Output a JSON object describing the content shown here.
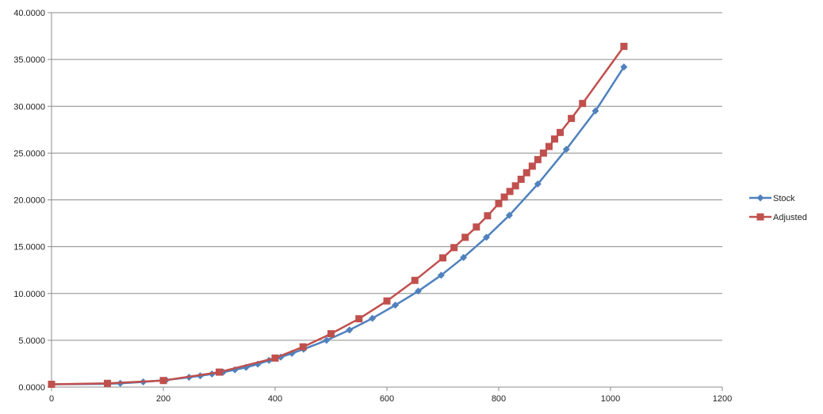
{
  "chart_data": {
    "type": "line",
    "title": "",
    "xlabel": "",
    "ylabel": "",
    "xlim": [
      0,
      1200
    ],
    "ylim": [
      0,
      40
    ],
    "x_ticks": [
      0,
      200,
      400,
      600,
      800,
      1000,
      1200
    ],
    "x_tick_labels": [
      "0",
      "200",
      "400",
      "600",
      "800",
      "1000",
      "1200"
    ],
    "y_ticks": [
      0,
      5,
      10,
      15,
      20,
      25,
      30,
      35,
      40
    ],
    "y_tick_labels": [
      "0.0000",
      "5.0000",
      "10.0000",
      "15.0000",
      "20.0000",
      "25.0000",
      "30.0000",
      "35.0000",
      "40.0000"
    ],
    "grid": {
      "horizontal": true,
      "vertical": false
    },
    "legend_position": "right",
    "series": [
      {
        "name": "Stock",
        "color": "#4F81BD",
        "marker": "diamond",
        "points": [
          [
            0,
            0.3
          ],
          [
            100,
            0.35
          ],
          [
            123,
            0.4
          ],
          [
            164,
            0.55
          ],
          [
            205,
            0.75
          ],
          [
            246,
            1.05
          ],
          [
            266,
            1.2
          ],
          [
            287,
            1.4
          ],
          [
            307,
            1.6
          ],
          [
            328,
            1.85
          ],
          [
            348,
            2.1
          ],
          [
            369,
            2.45
          ],
          [
            389,
            2.85
          ],
          [
            410,
            3.2
          ],
          [
            430,
            3.6
          ],
          [
            451,
            4.05
          ],
          [
            492,
            5.0
          ],
          [
            533,
            6.1
          ],
          [
            574,
            7.35
          ],
          [
            615,
            8.75
          ],
          [
            656,
            10.25
          ],
          [
            697,
            11.95
          ],
          [
            737,
            13.85
          ],
          [
            778,
            16.0
          ],
          [
            819,
            18.35
          ],
          [
            870,
            21.7
          ],
          [
            921,
            25.4
          ],
          [
            973,
            29.5
          ],
          [
            1024,
            34.2
          ]
        ]
      },
      {
        "name": "Adjusted",
        "color": "#C0504D",
        "marker": "square",
        "points": [
          [
            0,
            0.3
          ],
          [
            100,
            0.4
          ],
          [
            200,
            0.7
          ],
          [
            300,
            1.6
          ],
          [
            400,
            3.1
          ],
          [
            450,
            4.3
          ],
          [
            500,
            5.7
          ],
          [
            550,
            7.3
          ],
          [
            600,
            9.2
          ],
          [
            650,
            11.4
          ],
          [
            700,
            13.8
          ],
          [
            720,
            14.9
          ],
          [
            740,
            16.0
          ],
          [
            760,
            17.1
          ],
          [
            780,
            18.3
          ],
          [
            800,
            19.6
          ],
          [
            810,
            20.3
          ],
          [
            820,
            20.9
          ],
          [
            830,
            21.5
          ],
          [
            840,
            22.2
          ],
          [
            850,
            22.9
          ],
          [
            860,
            23.6
          ],
          [
            870,
            24.3
          ],
          [
            880,
            25.0
          ],
          [
            890,
            25.7
          ],
          [
            900,
            26.5
          ],
          [
            910,
            27.2
          ],
          [
            930,
            28.7
          ],
          [
            950,
            30.3
          ],
          [
            1024,
            36.4
          ]
        ]
      }
    ]
  }
}
